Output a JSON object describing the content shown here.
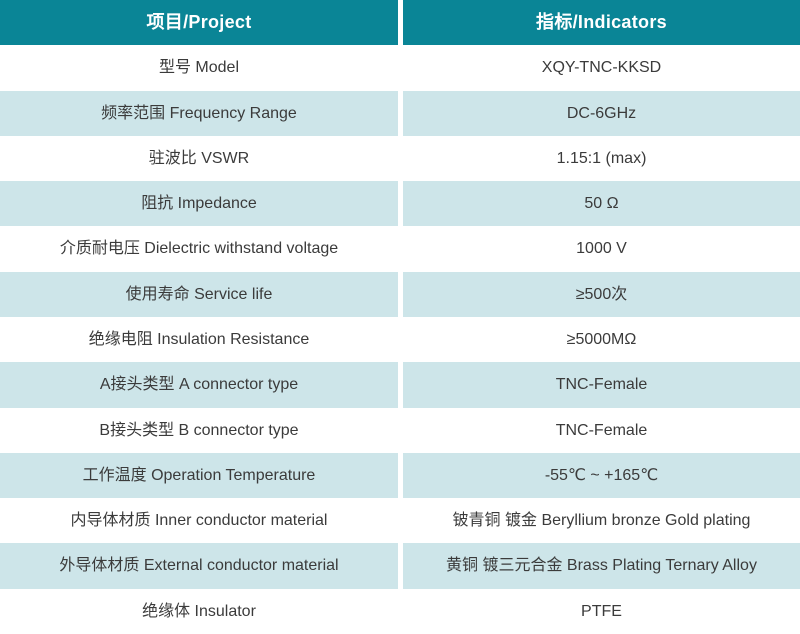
{
  "table": {
    "colors": {
      "header_background": "#0a8596",
      "header_text": "#ffffff",
      "row_alt_background": "#cde5e9",
      "row_background": "#ffffff",
      "body_text": "#3b3b3b"
    },
    "header": {
      "project": "项目/Project",
      "indicators": "指标/Indicators"
    },
    "rows": [
      {
        "project": "型号 Model",
        "indicator": "XQY-TNC-KKSD"
      },
      {
        "project": "频率范围 Frequency Range",
        "indicator": "DC-6GHz"
      },
      {
        "project": "驻波比 VSWR",
        "indicator": "1.15:1 (max)"
      },
      {
        "project": "阻抗 Impedance",
        "indicator": "50 Ω"
      },
      {
        "project": "介质耐电压 Dielectric withstand voltage",
        "indicator": "1000 V"
      },
      {
        "project": "使用寿命 Service life",
        "indicator": "≥500次"
      },
      {
        "project": "绝缘电阻 Insulation Resistance",
        "indicator": "≥5000MΩ"
      },
      {
        "project": "A接头类型 A connector type",
        "indicator": "TNC-Female"
      },
      {
        "project": "B接头类型 B connector type",
        "indicator": "TNC-Female"
      },
      {
        "project": "工作温度 Operation Temperature",
        "indicator": "-55℃ ~ +165℃"
      },
      {
        "project": "内导体材质 Inner conductor material",
        "indicator": "铍青铜 镀金 Beryllium bronze Gold plating"
      },
      {
        "project": "外导体材质 External conductor material",
        "indicator": "黄铜 镀三元合金 Brass Plating Ternary Alloy"
      },
      {
        "project": "绝缘体 Insulator",
        "indicator": "PTFE"
      }
    ]
  }
}
